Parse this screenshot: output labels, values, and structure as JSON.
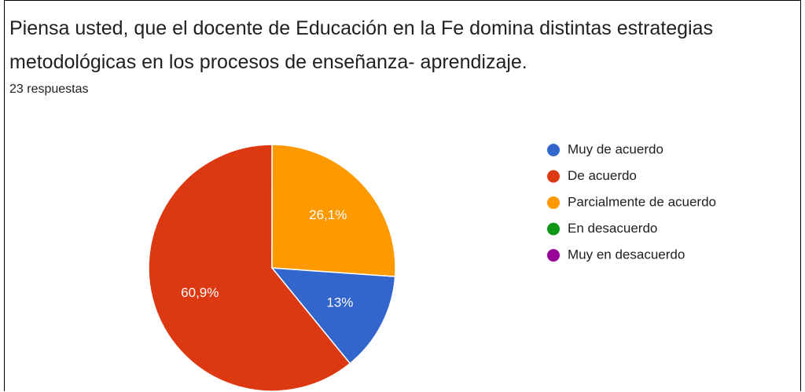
{
  "chart_data": {
    "type": "pie",
    "title": "Piensa usted, que el docente de Educación en la Fe domina distintas estrategias metodológicas en los procesos de enseñanza- aprendizaje.",
    "subtitle": "23 respuestas",
    "categories": [
      "Muy de acuerdo",
      "De acuerdo",
      "Parcialmente de acuerdo",
      "En desacuerdo",
      "Muy en desacuerdo"
    ],
    "values": [
      13,
      60.9,
      26.1,
      0,
      0
    ],
    "value_labels": [
      "13%",
      "60,9%",
      "26,1%",
      null,
      null
    ],
    "colors": [
      "#3366cc",
      "#dc3912",
      "#ff9900",
      "#109618",
      "#990099"
    ],
    "legend": "right"
  }
}
